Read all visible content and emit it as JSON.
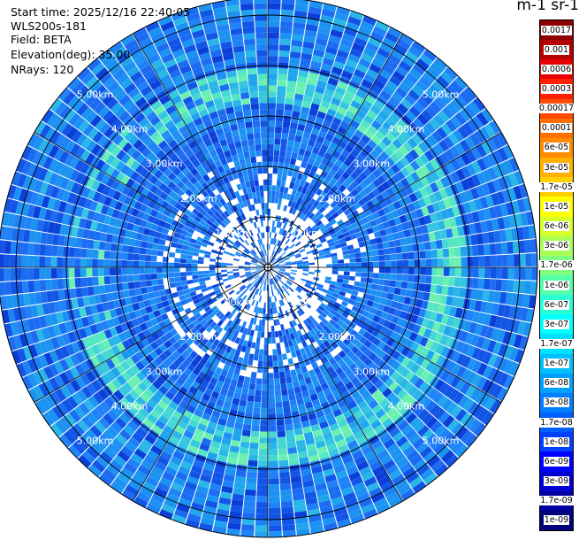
{
  "header": {
    "start_time": "Start time: 2025/12/16 22:40:05",
    "instrument": "WLS200s-181",
    "field": "Field: BETA",
    "elevation": "Elevation(deg): 35.00",
    "nrays": "NRays: 120"
  },
  "colorbar": {
    "title": "m-1 sr-1",
    "labels": [
      "0.0017",
      "0.001",
      "0.0006",
      "0.0003",
      "0.00017",
      "0.0001",
      "6e-05",
      "3e-05",
      "1.7e-05",
      "1e-05",
      "6e-06",
      "3e-06",
      "1.7e-06",
      "1e-06",
      "6e-07",
      "3e-07",
      "1.7e-07",
      "1e-07",
      "6e-08",
      "3e-08",
      "1.7e-08",
      "1e-08",
      "6e-09",
      "3e-09",
      "1.7e-09",
      "1e-09"
    ],
    "colors": [
      "#8b0000",
      "#b30000",
      "#e60000",
      "#ff2000",
      "#ff4a00",
      "#ff7000",
      "#ff8c00",
      "#ffb000",
      "#ffd000",
      "#ffff00",
      "#d4ff2a",
      "#a8ff55",
      "#80ff80",
      "#55ffa8",
      "#2affd4",
      "#00ffff",
      "#00e0ff",
      "#00bfff",
      "#00a0ff",
      "#0080ff",
      "#0060ff",
      "#0040ff",
      "#0000ff",
      "#0000d0",
      "#0000a0",
      "#00007a"
    ]
  },
  "chart_data": {
    "type": "heatmap",
    "projection": "polar PPI scan",
    "title": "",
    "field": "BETA",
    "elevation_deg": 35.0,
    "n_rays": 120,
    "range_rings_km": [
      1,
      2,
      3,
      4,
      5
    ],
    "range_ring_labels": [
      "1.00km",
      "2.00km",
      "3.00km",
      "4.00km",
      "5.00km"
    ],
    "max_range_km": 5.35,
    "colorscale": "log, 1e-09 to 0.0017 m-1 sr-1",
    "dominant_value": "1e-08 to 3e-08",
    "enhanced_band": {
      "range_km": [
        3.3,
        3.9
      ],
      "value": "1.7e-07 to 3e-07"
    },
    "grid": true
  }
}
